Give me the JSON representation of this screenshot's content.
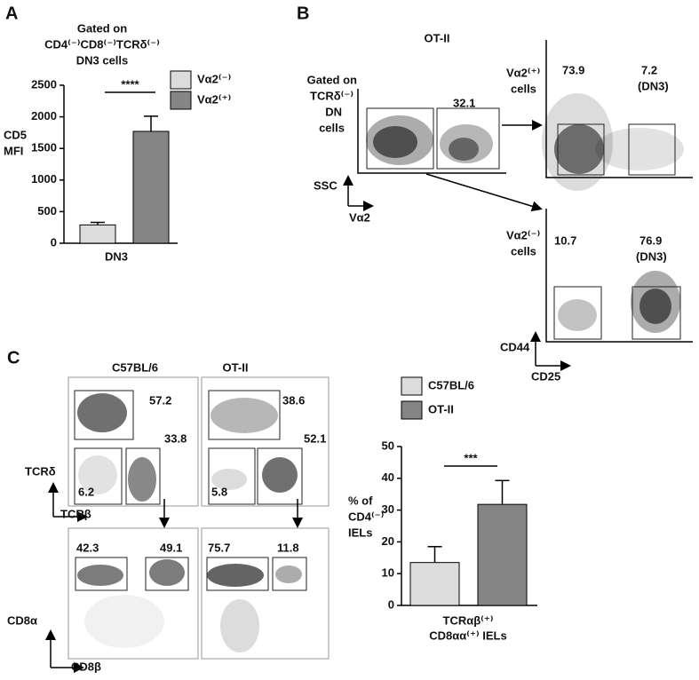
{
  "letters": [
    "A",
    "B",
    "C"
  ],
  "chart_data": [
    {
      "type": "bar",
      "title": [
        "Gated on",
        "CD4⁽⁻⁾CD8⁽⁻⁾TCRδ⁽⁻⁾",
        "DN3 cells"
      ],
      "ylabel": [
        "CD5",
        "MFI"
      ],
      "categories": [
        "DN3"
      ],
      "series": [
        {
          "name": "Vα2⁽⁻⁾",
          "color": "#dcdcdc",
          "values": [
            290
          ],
          "errors": [
            40
          ]
        },
        {
          "name": "Vα2⁽⁺⁾",
          "color": "#858585",
          "values": [
            1770
          ],
          "errors": [
            240
          ]
        }
      ],
      "ylim": [
        0,
        2500
      ],
      "yticks": [
        0,
        500,
        1000,
        1500,
        2000,
        2500
      ],
      "annotation": "****"
    },
    {
      "type": "bar",
      "ylabel": [
        "% of",
        "CD4⁽⁻⁾",
        "IELs"
      ],
      "xlabel": [
        "TCRαβ⁽⁺⁾",
        "CD8αα⁽⁺⁾ IELs"
      ],
      "categories": [
        null
      ],
      "series": [
        {
          "name": "C57BL/6",
          "color": "#dcdcdc",
          "values": [
            13.5
          ],
          "errors": [
            5
          ]
        },
        {
          "name": "OT-II",
          "color": "#858585",
          "values": [
            31.8
          ],
          "errors": [
            7.5
          ]
        }
      ],
      "ylim": [
        0,
        50
      ],
      "yticks": [
        0,
        10,
        20,
        30,
        40,
        50
      ],
      "annotation": "***"
    }
  ],
  "panel_b": {
    "title": "OT-II",
    "gate_label": [
      "Gated on",
      "TCRδ⁽⁻⁾",
      "DN",
      "cells"
    ],
    "plot1": {
      "gate": "32.1",
      "xlabel": "Vα2",
      "ylabel": "SSC"
    },
    "plot2": {
      "label": [
        "Vα2⁽⁺⁾",
        "cells"
      ],
      "gates": [
        "73.9",
        "7.2",
        "(DN3)"
      ]
    },
    "plot3": {
      "label": [
        "Vα2⁽⁻⁾",
        "cells"
      ],
      "gates": [
        "10.7",
        "76.9",
        "(DN3)"
      ],
      "xlabel": "CD25",
      "ylabel": "CD44"
    }
  },
  "panel_c": {
    "columns": [
      "C57BL/6",
      "OT-II"
    ],
    "top": {
      "xlabel": "TCRβ",
      "ylabel": "TCRδ",
      "c57": [
        "57.2",
        "33.8",
        "6.2"
      ],
      "ot2": [
        "38.6",
        "52.1",
        "5.8"
      ]
    },
    "bottom": {
      "xlabel": "CD8β",
      "ylabel": "CD8α",
      "c57": [
        "42.3",
        "49.1"
      ],
      "ot2": [
        "75.7",
        "11.8"
      ]
    }
  }
}
